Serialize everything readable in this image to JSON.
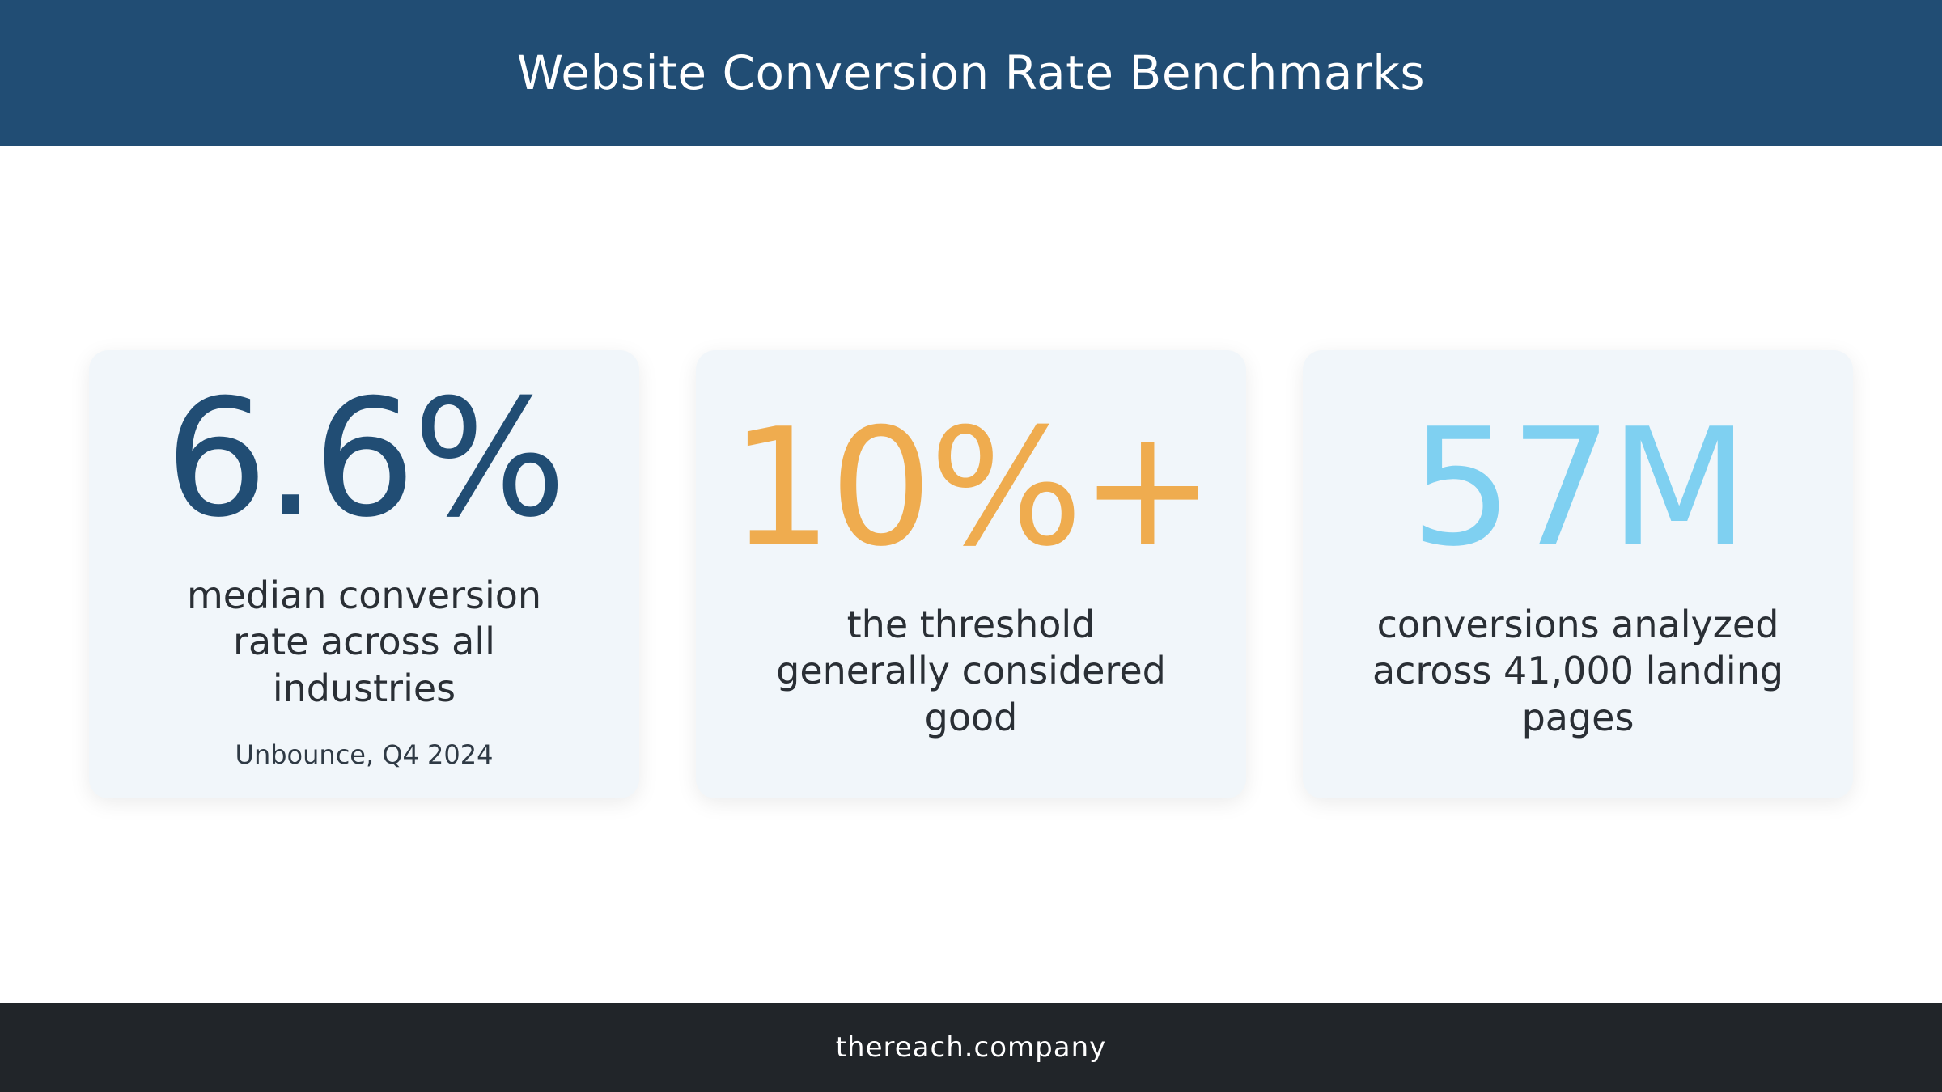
{
  "header": {
    "title": "Website Conversion Rate Benchmarks"
  },
  "cards": [
    {
      "value": "6.6%",
      "color": "#214d74",
      "description": "median conversion rate across all industries",
      "source": "Unbounce, Q4 2024"
    },
    {
      "value": "10%+",
      "color": "#efac4f",
      "description": "the threshold generally considered good"
    },
    {
      "value": "57M",
      "color": "#7fd0f1",
      "description": "conversions analyzed across 41,000 landing pages"
    }
  ],
  "footer": {
    "text": "thereach.company"
  }
}
